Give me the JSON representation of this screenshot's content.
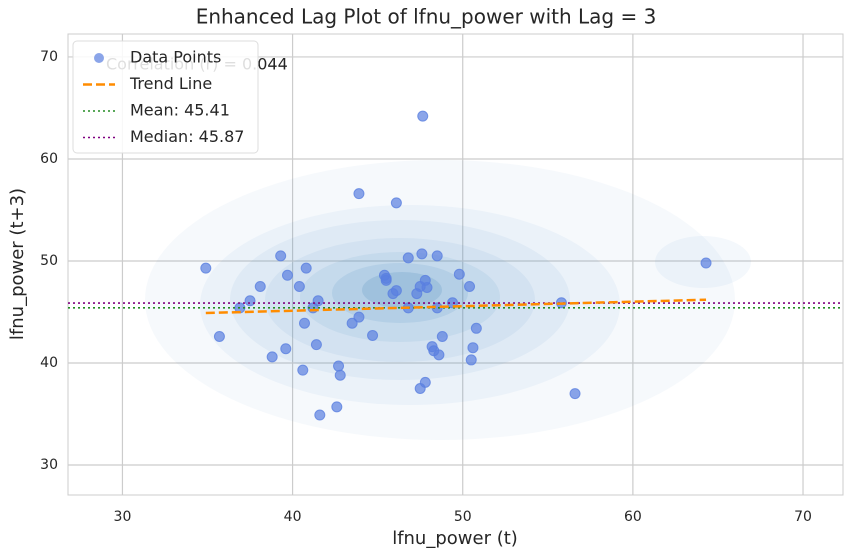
{
  "chart_data": {
    "type": "scatter",
    "title": "Enhanced Lag Plot of lfnu_power with Lag = 3",
    "x_label": "lfnu_power (t)",
    "y_label": "lfnu_power (t+3)",
    "annotation": "Correlation (r) = 0.044",
    "xlim": [
      26.8,
      72.35
    ],
    "ylim": [
      27.06,
      72.25
    ],
    "xticks": [
      30,
      40,
      50,
      60,
      70
    ],
    "yticks": [
      30,
      40,
      50,
      60,
      70
    ],
    "grid": true,
    "legend": "upper left",
    "series": [
      {
        "name": "Data Points",
        "color": "#5a7fe0",
        "x": [
          47.65,
          43.9,
          46.1,
          34.9,
          39.3,
          40.8,
          39.7,
          38.1,
          40.4,
          37.5,
          36.9,
          41.5,
          41.2,
          35.7,
          40.7,
          41.4,
          39.6,
          38.8,
          40.6,
          42.7,
          42.8,
          41.6,
          42.6,
          43.5,
          43.9,
          44.7,
          45.4,
          45.5,
          45.5,
          45.9,
          46.1,
          46.8,
          47.6,
          48.5,
          47.5,
          47.8,
          47.9,
          46.8,
          47.3,
          48.5,
          49.8,
          50.4,
          49.4,
          48.8,
          48.2,
          48.3,
          48.6,
          47.8,
          47.5,
          50.8,
          50.6,
          50.5,
          55.8,
          56.6,
          64.3
        ],
        "values": [
          64.2,
          56.6,
          55.7,
          49.3,
          50.5,
          49.3,
          48.6,
          47.5,
          47.5,
          46.1,
          45.4,
          46.1,
          45.4,
          42.6,
          43.9,
          41.8,
          41.4,
          40.6,
          39.3,
          39.7,
          38.8,
          34.9,
          35.7,
          43.9,
          44.5,
          42.7,
          48.6,
          48.1,
          48.3,
          46.8,
          47.1,
          50.3,
          50.7,
          50.5,
          47.5,
          48.1,
          47.4,
          45.4,
          46.8,
          45.4,
          48.7,
          47.5,
          45.9,
          42.6,
          41.6,
          41.2,
          40.8,
          38.1,
          37.5,
          43.4,
          41.5,
          40.3,
          45.9,
          37.0,
          49.8
        ]
      }
    ],
    "trend": {
      "name": "Trend Line",
      "color": "#ff8c00",
      "x": [
        34.9,
        64.3
      ],
      "values": [
        44.9,
        46.2
      ]
    },
    "reference_lines": [
      {
        "name": "Mean: 45.41",
        "value": 45.41,
        "color": "#228b22"
      },
      {
        "name": "Median: 45.87",
        "value": 45.87,
        "color": "#800080"
      }
    ]
  }
}
